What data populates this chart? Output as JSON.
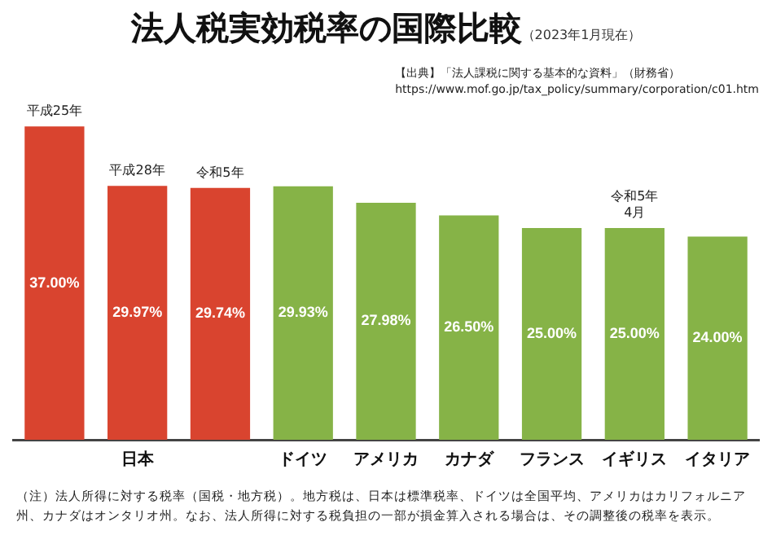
{
  "chart_data": {
    "type": "bar",
    "title": "法人税実効税率の国際比較",
    "subtitle": "（2023年1月現在）",
    "categories": [
      null,
      "日本",
      null,
      "ドイツ",
      "アメリカ",
      "カナダ",
      "フランス",
      "イギリス",
      "イタリア"
    ],
    "values": [
      37.0,
      29.97,
      29.74,
      29.93,
      27.98,
      26.5,
      25.0,
      25.0,
      24.0
    ],
    "value_labels": [
      "37.00%",
      "29.97%",
      "29.74%",
      "29.93%",
      "27.98%",
      "26.50%",
      "25.00%",
      "25.00%",
      "24.00%"
    ],
    "colors": [
      "#d9442f",
      "#d9442f",
      "#d9442f",
      "#86b347",
      "#86b347",
      "#86b347",
      "#86b347",
      "#86b347",
      "#86b347"
    ],
    "annotations": [
      {
        "text": "平成25年",
        "y": 37.0
      },
      {
        "text": "平成28年",
        "x": "日本",
        "y": 29.97
      },
      {
        "text": "令和5年",
        "y": 29.74
      },
      {
        "text": "令和5年\n4月",
        "x": "イギリス",
        "y": 25.0
      },
      "【出典】「法人課税に関する基本的な資料」（財務省）\nhttps://www.mof.go.jp/tax_policy/summary/corporation/c01.htm",
      "（注）法人所得に対する税率（国税・地方税）。地方税は、日本は標準税率、ドイツは全国平均、アメリカはカリフォルニア州、カナダはオンタリオ州。なお、法人所得に対する税負担の一部が損金算入される場合は、その調整後の税率を表示。"
    ],
    "legend": false,
    "grid": false
  }
}
